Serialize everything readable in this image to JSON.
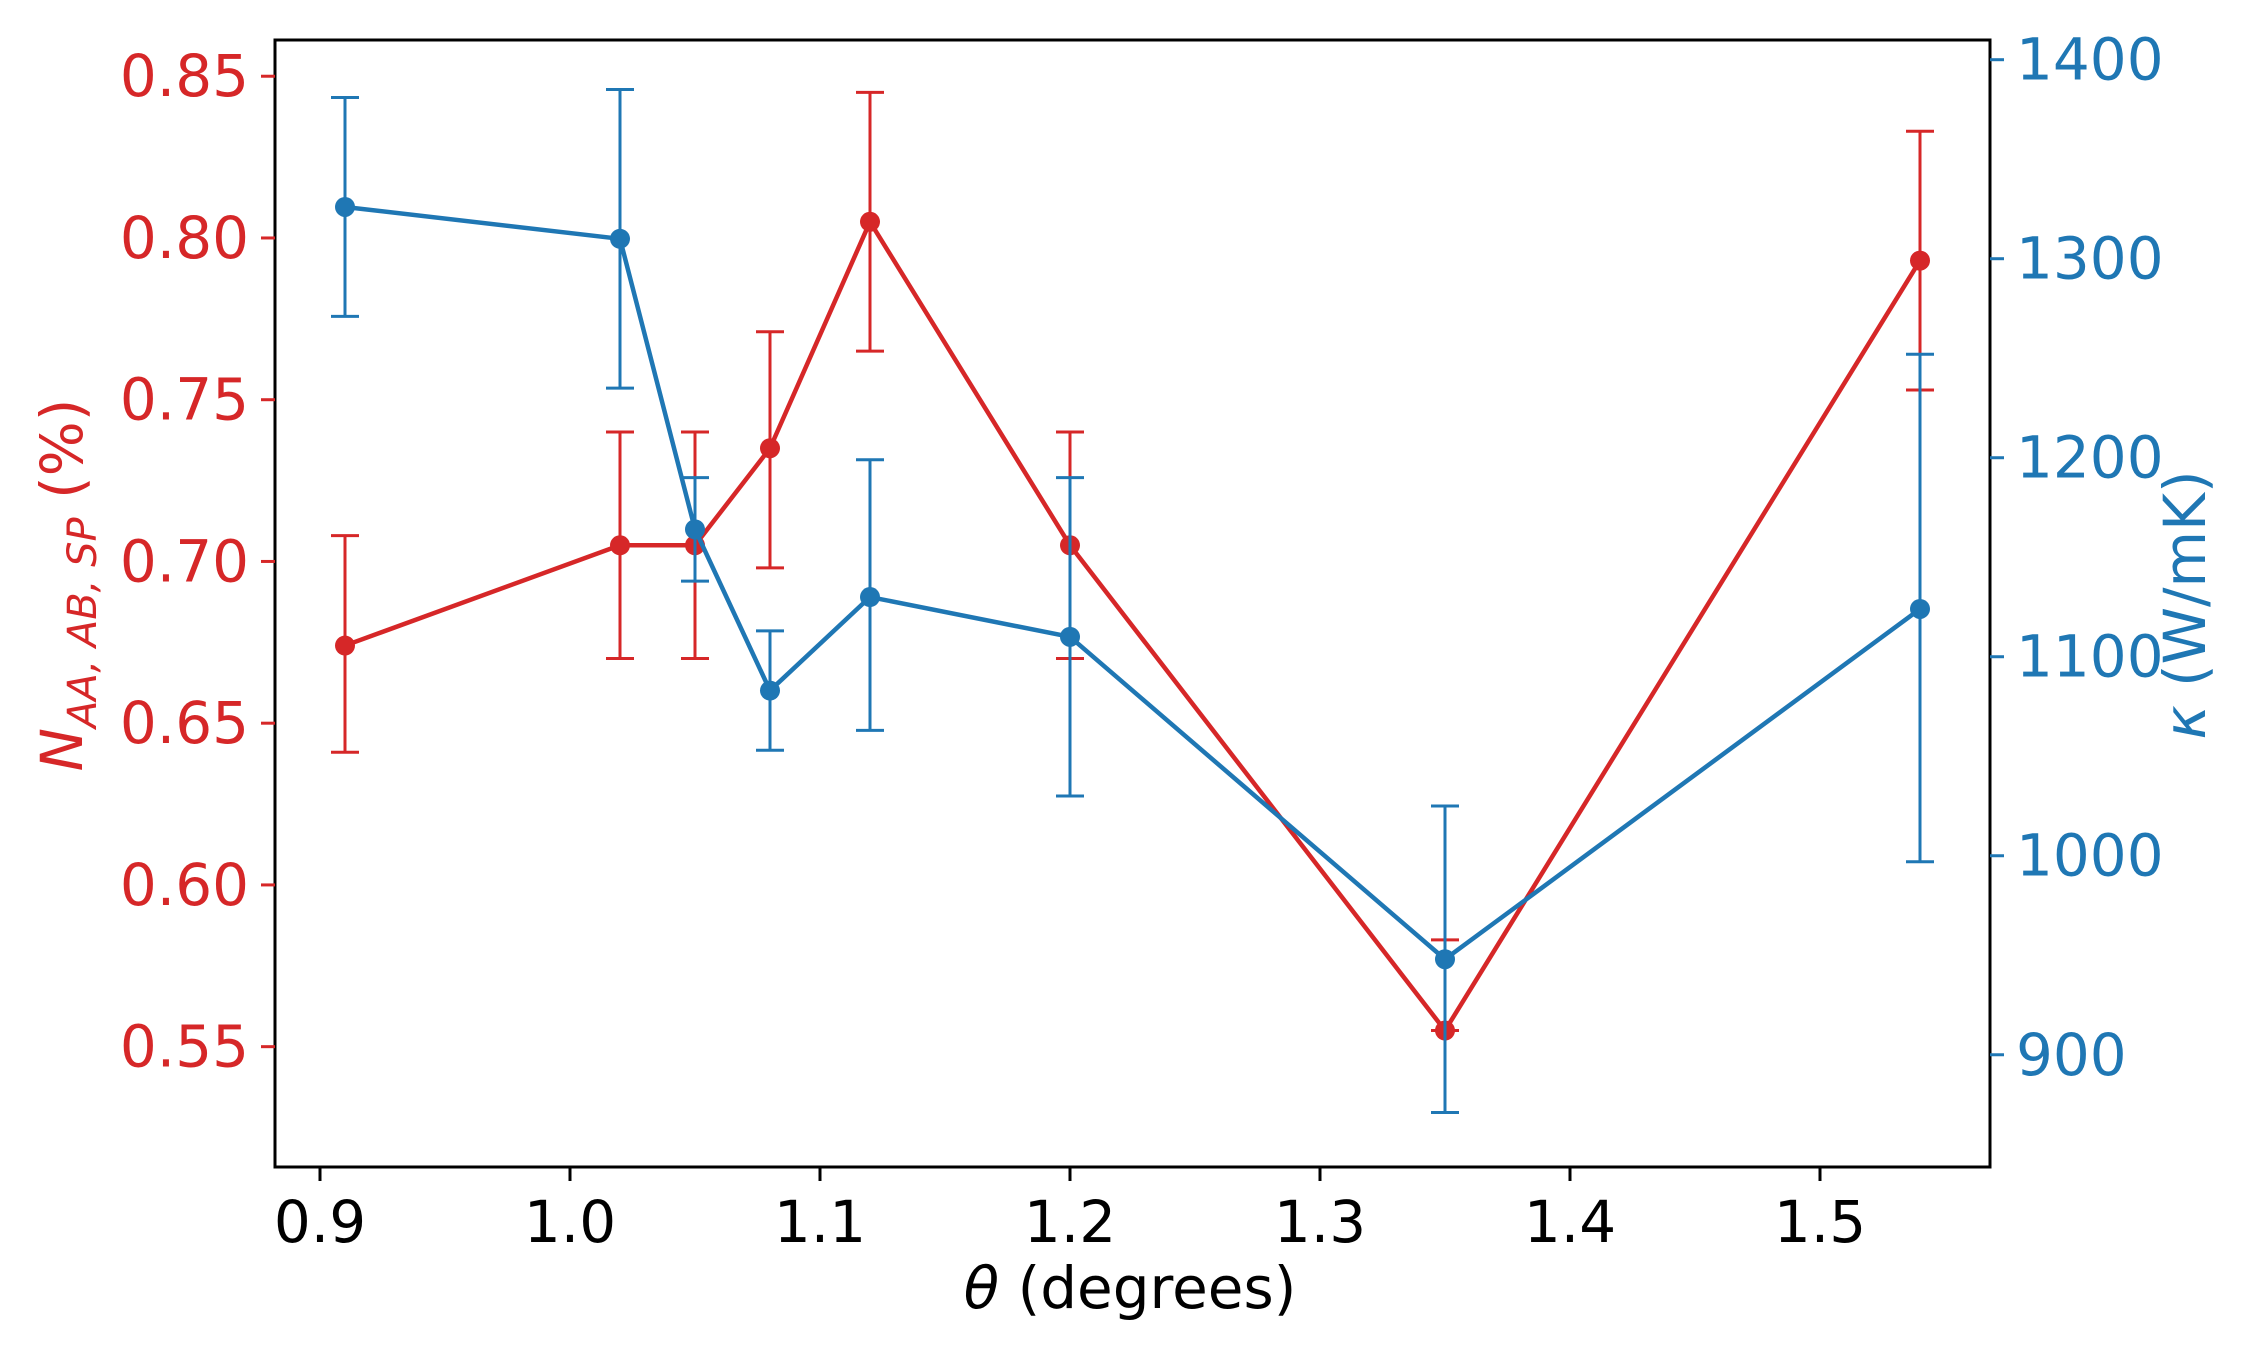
{
  "chart_data": {
    "type": "line",
    "title": "",
    "xlabel": {
      "symbol": "θ",
      "rest": " (degrees)"
    },
    "ylabel_left": {
      "main": "N",
      "sub": "AA, AB, SP",
      "rest": " (%)"
    },
    "ylabel_right": {
      "symbol": "κ",
      "rest": " (W/mK)"
    },
    "xlim": [
      0.882,
      1.568
    ],
    "ylim_left": [
      0.5128,
      0.8612
    ],
    "ylim_right": [
      843.6,
      1409.9
    ],
    "x_ticks": [
      {
        "value": 0.9,
        "label": "0.9"
      },
      {
        "value": 1.0,
        "label": "1.0"
      },
      {
        "value": 1.1,
        "label": "1.1"
      },
      {
        "value": 1.2,
        "label": "1.2"
      },
      {
        "value": 1.3,
        "label": "1.3"
      },
      {
        "value": 1.4,
        "label": "1.4"
      },
      {
        "value": 1.5,
        "label": "1.5"
      }
    ],
    "y_left_ticks": [
      {
        "value": 0.55,
        "label": "0.55"
      },
      {
        "value": 0.6,
        "label": "0.60"
      },
      {
        "value": 0.65,
        "label": "0.65"
      },
      {
        "value": 0.7,
        "label": "0.70"
      },
      {
        "value": 0.75,
        "label": "0.75"
      },
      {
        "value": 0.8,
        "label": "0.80"
      },
      {
        "value": 0.85,
        "label": "0.85"
      }
    ],
    "y_right_ticks": [
      {
        "value": 900,
        "label": "900"
      },
      {
        "value": 1000,
        "label": "1000"
      },
      {
        "value": 1100,
        "label": "1100"
      },
      {
        "value": 1200,
        "label": "1200"
      },
      {
        "value": 1300,
        "label": "1300"
      },
      {
        "value": 1400,
        "label": "1400"
      }
    ],
    "series": [
      {
        "name": "N_AA,AB,SP",
        "axis": "left",
        "color": "#d62728",
        "x": [
          0.91,
          1.02,
          1.05,
          1.08,
          1.12,
          1.2,
          1.35,
          1.54
        ],
        "y": [
          0.674,
          0.705,
          0.705,
          0.735,
          0.805,
          0.705,
          0.555,
          0.793
        ],
        "err_lower": [
          0.033,
          0.035,
          0.035,
          0.037,
          0.04,
          0.035,
          0.0,
          0.04
        ],
        "err_upper": [
          0.034,
          0.035,
          0.035,
          0.036,
          0.04,
          0.035,
          0.028,
          0.04
        ]
      },
      {
        "name": "kappa",
        "axis": "right",
        "color": "#1f77b4",
        "x": [
          0.91,
          1.02,
          1.05,
          1.08,
          1.12,
          1.2,
          1.35,
          1.54
        ],
        "y": [
          1326,
          1310,
          1164,
          1083,
          1130,
          1110,
          948,
          1124
        ],
        "err_lower": [
          55,
          75,
          26,
          30,
          67,
          80,
          77,
          127
        ],
        "err_upper": [
          55,
          75,
          26,
          30,
          69,
          80,
          77,
          128
        ]
      }
    ]
  }
}
